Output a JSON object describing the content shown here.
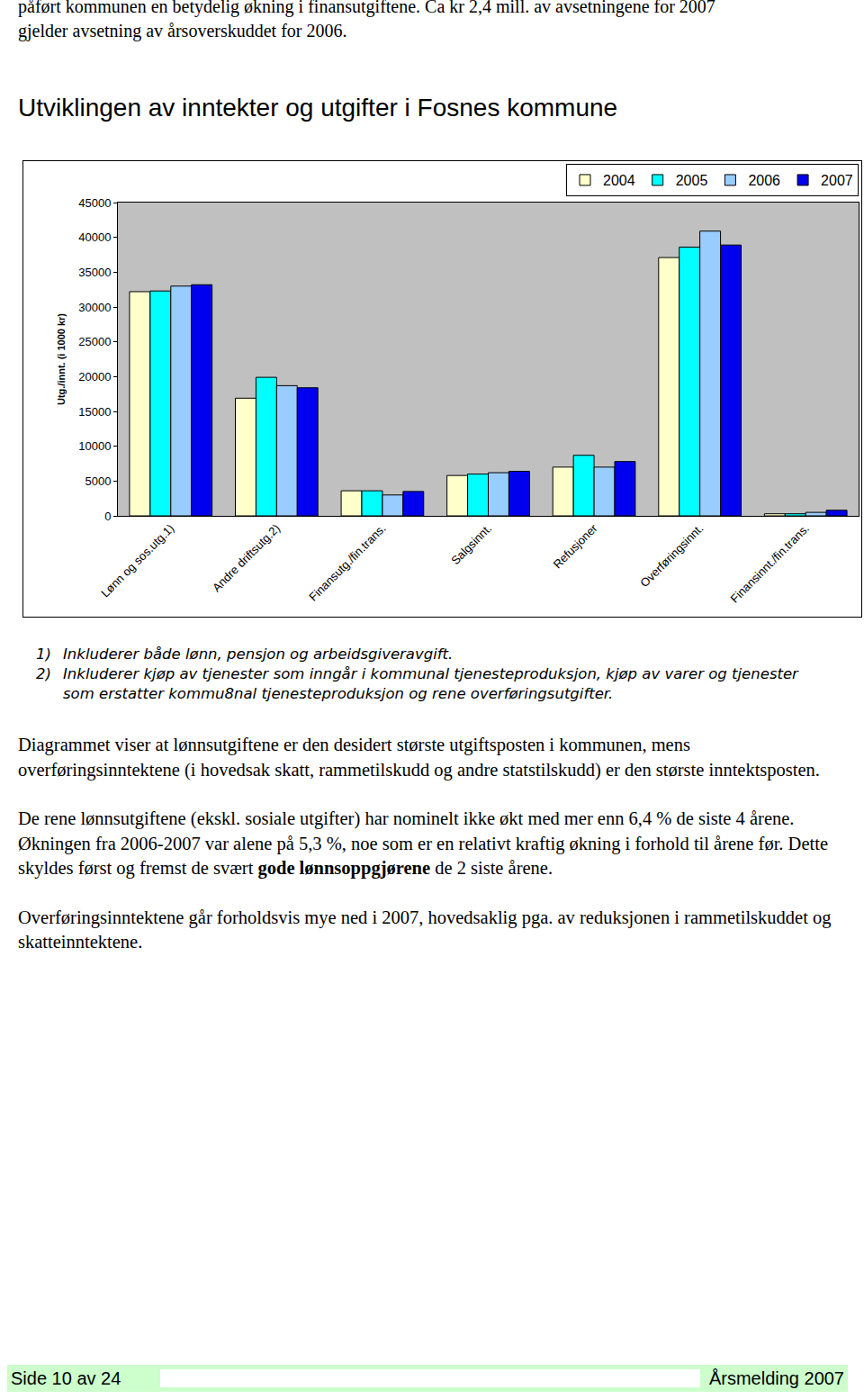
{
  "header_text": [
    "påført kommunen en betydelig økning i finansutgiftene. Ca kr 2,4 mill. av avsetningene for 2007",
    "gjelder avsetning av årsoverskuddet for 2006."
  ],
  "chart_data": {
    "type": "bar",
    "title": "Utviklingen av inntekter og utgifter i Fosnes kommune",
    "y_label": "Utg./innt. (i 1000 kr)",
    "categories": [
      "Lønn og sos.utg.1)",
      "Andre driftsutg.2)",
      "Finansutg./fin.trans.",
      "Salgsinnt.",
      "Refusjoner",
      "Overføringsinnt.",
      "Finansinnt./fin.trans."
    ],
    "series": [
      {
        "name": "2004",
        "color": "#ffffcc",
        "values": [
          32200,
          16900,
          3600,
          5800,
          7000,
          37100,
          300
        ]
      },
      {
        "name": "2005",
        "color": "#00ffff",
        "values": [
          32300,
          19900,
          3600,
          6000,
          8700,
          38600,
          300
        ]
      },
      {
        "name": "2006",
        "color": "#99ccff",
        "values": [
          33000,
          18700,
          3000,
          6200,
          7000,
          40900,
          500
        ]
      },
      {
        "name": "2007",
        "color": "#0000ee",
        "values": [
          33200,
          18400,
          3500,
          6400,
          7800,
          38900,
          800
        ]
      }
    ],
    "ylim": [
      0,
      45000
    ],
    "yticks": [
      0,
      5000,
      10000,
      15000,
      20000,
      25000,
      30000,
      35000,
      40000,
      45000
    ],
    "grid": false,
    "legend": "top"
  },
  "footnotes": [
    {
      "marker": "1)",
      "text": "Inkluderer både lønn, pensjon og arbeidsgiveravgift."
    },
    {
      "marker": "2)",
      "text": "Inkluderer kjøp av tjenester som inngår i kommunal tjenesteproduksjon, kjøp av varer og tjenester som erstatter kommu8nal tjenesteproduksjon og rene overføringsutgifter."
    }
  ],
  "paragraphs": [
    [
      {
        "text": "Diagrammet viser at lønnsutgiftene er den desidert største utgiftsposten i kommunen, mens overføringsinntektene (i hovedsak skatt, rammetilskudd og andre statstilskudd) er den største inntektsposten."
      }
    ],
    [
      {
        "text": "De rene lønnsutgiftene (ekskl. sosiale utgifter) har nominelt ikke økt med mer enn 6,4 % de siste 4 årene. Økningen fra 2006-2007 var alene på 5,3 %, noe som er en relativt kraftig økning i forhold til årene før. Dette skyldes først og fremst de svært "
      },
      {
        "text": "gode lønnsoppgjørene",
        "bold": true
      },
      {
        "text": " de 2 siste årene."
      }
    ],
    [
      {
        "text": "Overføringsinntektene går forholdsvis mye ned i 2007, hovedsaklig pga. av reduksjonen i rammetilskuddet og skatteinntektene."
      }
    ]
  ],
  "footer": {
    "left": "Side 10 av 24",
    "right": "Årsmelding 2007"
  }
}
